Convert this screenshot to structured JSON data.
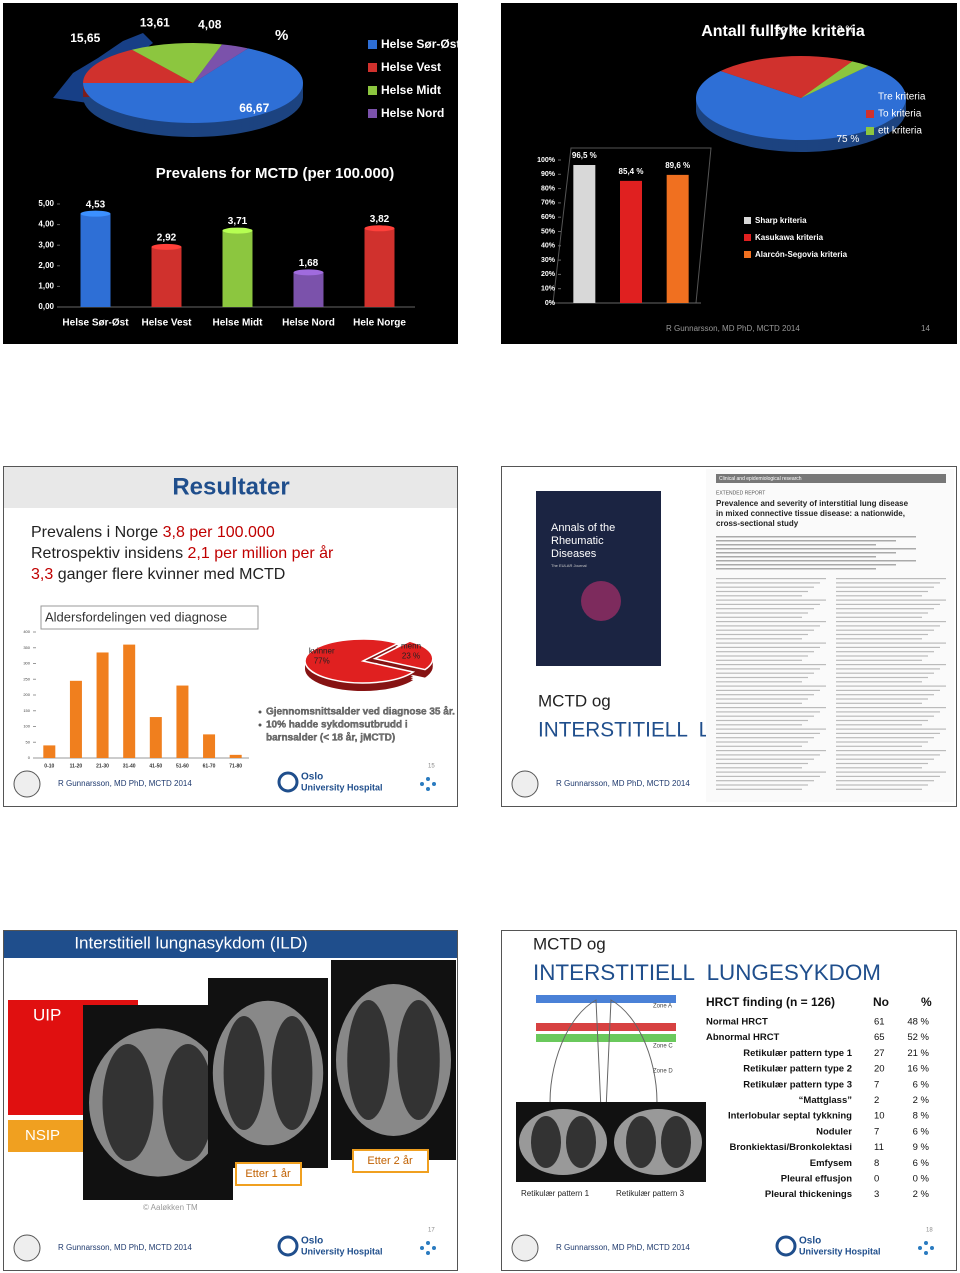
{
  "slides": [
    {
      "pie": {
        "type": "pie",
        "title": "%",
        "categories": [
          "Helse Sør-Øst",
          "Helse Vest",
          "Helse Midt",
          "Helse Nord"
        ],
        "values": [
          66.67,
          15.65,
          13.61,
          4.08
        ],
        "value_labels": [
          "66,67",
          "15,65",
          "13,61",
          "4,08"
        ],
        "colors": [
          "#2e6fd6",
          "#d0312d",
          "#8cc63f",
          "#7b52ab"
        ]
      },
      "bar": {
        "type": "bar",
        "title": "Prevalens for MCTD (per 100.000)",
        "categories": [
          "Helse Sør-Øst",
          "Helse Vest",
          "Helse Midt",
          "Helse Nord",
          "Hele Norge"
        ],
        "values": [
          4.53,
          2.92,
          3.71,
          1.68,
          3.82
        ],
        "value_labels": [
          "4,53",
          "2,92",
          "3,71",
          "1,68",
          "3,82"
        ],
        "colors": [
          "#2e6fd6",
          "#d0312d",
          "#8cc63f",
          "#7b52ab",
          "#d0312d"
        ],
        "ylim": [
          0,
          5
        ],
        "yticks": [
          {
            "value": 0,
            "label": "0,00"
          },
          {
            "value": 1,
            "label": "1,00"
          },
          {
            "value": 2,
            "label": "2,00"
          },
          {
            "value": 3,
            "label": "3,00"
          },
          {
            "value": 4,
            "label": "4,00"
          },
          {
            "value": 5,
            "label": "5,00"
          }
        ],
        "grid": false
      }
    },
    {
      "pie": {
        "type": "pie",
        "title": "Antall fullfylte kriteria",
        "categories": [
          "Tre kriteria",
          "To kriteria",
          "ett kriteria"
        ],
        "values": [
          75,
          22,
          3
        ],
        "value_labels": [
          "75 %",
          "22 %",
          "3 %"
        ],
        "colors": [
          "#2e6fd6",
          "#d0312d",
          "#8cc63f"
        ]
      },
      "bar": {
        "type": "bar",
        "categories": [
          "Sharp kriteria",
          "Kasukawa kriteria",
          "Alarcón-Segovia kriteria"
        ],
        "values": [
          96.5,
          85.4,
          89.6
        ],
        "value_labels": [
          "96,5 %",
          "85,4 %",
          "89,6 %"
        ],
        "colors": [
          "#d8d8d8",
          "#e02020",
          "#f07020"
        ],
        "ylim": [
          0,
          100
        ],
        "yticks": [
          {
            "value": 0,
            "label": "0%"
          },
          {
            "value": 10,
            "label": "10%"
          },
          {
            "value": 20,
            "label": "20%"
          },
          {
            "value": 30,
            "label": "30%"
          },
          {
            "value": 40,
            "label": "40%"
          },
          {
            "value": 50,
            "label": "50%"
          },
          {
            "value": 60,
            "label": "60%"
          },
          {
            "value": 70,
            "label": "70%"
          },
          {
            "value": 80,
            "label": "80%"
          },
          {
            "value": 90,
            "label": "90%"
          },
          {
            "value": 100,
            "label": "100%"
          }
        ],
        "grid": false
      },
      "footer": "R Gunnarsson, MD PhD, MCTD 2014",
      "page": "14"
    },
    {
      "title": "Resultater",
      "lines": [
        [
          {
            "text": "Prevalens i Norge "
          },
          {
            "text": "3,8 per 100.000",
            "highlight": true
          }
        ],
        [
          {
            "text": "Retrospektiv insidens "
          },
          {
            "text": "2,1 per million per år",
            "highlight": true
          }
        ],
        [
          {
            "text": "3,3",
            "highlight": true
          },
          {
            "text": " ganger flere kvinner med MCTD"
          }
        ]
      ],
      "bar": {
        "type": "bar",
        "title": "Aldersfordelingen ved diagnose",
        "categories": [
          "0-10",
          "11-20",
          "21-30",
          "31-40",
          "41-50",
          "51-60",
          "61-70",
          "71-80"
        ],
        "values": [
          40,
          245,
          335,
          360,
          130,
          230,
          75,
          10
        ],
        "color": "#f07f1e",
        "ylim": [
          0,
          400
        ],
        "yticks": [
          0,
          50,
          100,
          150,
          200,
          250,
          300,
          350,
          400
        ],
        "grid": false
      },
      "pie": {
        "type": "pie",
        "categories": [
          "kvinner",
          "menn"
        ],
        "values": [
          77,
          23
        ],
        "value_labels": [
          "77%",
          "23 %"
        ],
        "colors": [
          "#e02020",
          "#e02020"
        ]
      },
      "bullets": [
        "Gjennomsnittsalder ved diagnose 35 år.",
        "10% hadde sykdomsutbrudd i",
        "barnsalder (< 18 år, jMCTD)"
      ],
      "footer": "R Gunnarsson, MD PhD, MCTD 2014",
      "page": "15",
      "logo": [
        "Oslo",
        "University Hospital"
      ]
    },
    {
      "cover": {
        "title": [
          "Annals of the",
          "Rheumatic",
          "Diseases"
        ],
        "subtitle": "The EULAR Journal"
      },
      "article": {
        "section": "Clinical and epidemiological research",
        "kind": "EXTENDED REPORT",
        "title": [
          "Prevalence and severity of interstitial lung disease",
          "in mixed connective tissue disease: a nationwide,",
          "cross-sectional study"
        ]
      },
      "heading": "MCTD og",
      "title": "INTERSTITIELL  LUNGESYKDOM",
      "footer": "R Gunnarsson, MD PhD, MCTD 2014"
    },
    {
      "title": "Interstitiell lungnasykdom (ILD)",
      "labels": [
        "UIP",
        "NSIP"
      ],
      "captions": [
        "Etter 1 år",
        "Etter 2 år"
      ],
      "credit": "© Aaløkken TM",
      "footer": "R Gunnarsson, MD PhD, MCTD 2014",
      "page": "17",
      "logo": [
        "Oslo",
        "University Hospital"
      ]
    },
    {
      "heading": "MCTD og",
      "title": "INTERSTITIELL  LUNGESYKDOM",
      "zones": [
        "Zone A",
        "Zone C",
        "Zone D"
      ],
      "image_captions": [
        "Retikulær pattern 1",
        "Retikulær pattern 3"
      ],
      "table": {
        "header": [
          "HRCT finding (n = 126)",
          "No",
          "%"
        ],
        "rows": [
          [
            "Normal HRCT",
            61,
            "48 %"
          ],
          [
            "Abnormal HRCT",
            65,
            "52 %"
          ],
          [
            "Retikulær pattern type 1",
            27,
            "21 %"
          ],
          [
            "Retikulær pattern type 2",
            20,
            "16 %"
          ],
          [
            "Retikulær pattern type 3",
            7,
            "6 %"
          ],
          [
            "“Mattglass”",
            2,
            "2 %"
          ],
          [
            "Interlobular septal tykkning",
            10,
            "8 %"
          ],
          [
            "Noduler",
            7,
            "6 %"
          ],
          [
            "Bronkiektasi/Bronkolektasi",
            11,
            "9 %"
          ],
          [
            "Emfysem",
            8,
            "6 %"
          ],
          [
            "Pleural effusjon",
            0,
            "0 %"
          ],
          [
            "Pleural thickenings",
            3,
            "2 %"
          ]
        ]
      },
      "footer": "R Gunnarsson, MD PhD, MCTD 2014",
      "page": "18",
      "logo": [
        "Oslo",
        "University Hospital"
      ]
    }
  ]
}
